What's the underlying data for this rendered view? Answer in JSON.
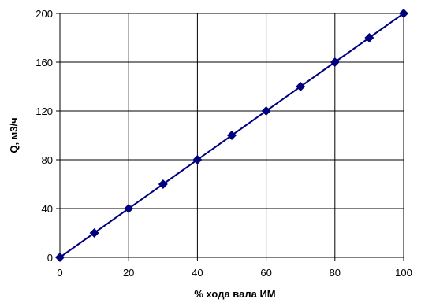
{
  "chart_data": {
    "type": "line",
    "title": "",
    "xlabel": "%  хода вала ИМ",
    "ylabel": "Q, м3/ч",
    "xlim": [
      0,
      100
    ],
    "ylim": [
      0,
      200
    ],
    "xticks": [
      0,
      20,
      40,
      60,
      80,
      100
    ],
    "yticks": [
      0,
      40,
      80,
      120,
      160,
      200
    ],
    "grid": true,
    "legend": "none",
    "series": [
      {
        "x": [
          0,
          10,
          20,
          30,
          40,
          50,
          60,
          70,
          80,
          90,
          100
        ],
        "y": [
          0,
          20,
          40,
          60,
          80,
          100,
          120,
          140,
          160,
          180,
          200
        ],
        "color": "#00007F",
        "marker": "diamond"
      }
    ]
  }
}
